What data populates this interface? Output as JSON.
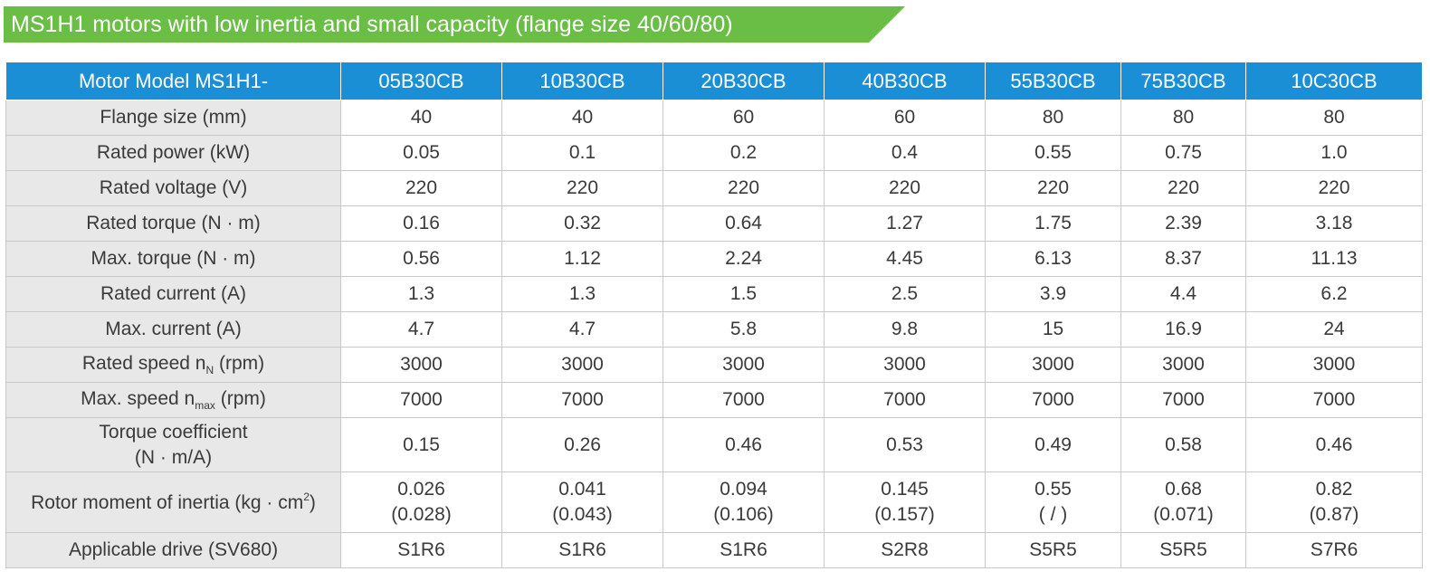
{
  "banner": {
    "title": "MS1H1 motors with low inertia and small capacity (flange size 40/60/80)",
    "color": "#6abd45"
  },
  "table": {
    "header_color": "#1a8fd6",
    "header": {
      "label": "Motor Model MS1H1-",
      "models": [
        "05B30CB",
        "10B30CB",
        "20B30CB",
        "40B30CB",
        "55B30CB",
        "75B30CB",
        "10C30CB"
      ]
    },
    "rows": [
      {
        "label": "Flange size (mm)",
        "values": [
          "40",
          "40",
          "60",
          "60",
          "80",
          "80",
          "80"
        ]
      },
      {
        "label": "Rated power (kW)",
        "values": [
          "0.05",
          "0.1",
          "0.2",
          "0.4",
          "0.55",
          "0.75",
          "1.0"
        ]
      },
      {
        "label": "Rated voltage (V)",
        "values": [
          "220",
          "220",
          "220",
          "220",
          "220",
          "220",
          "220"
        ]
      },
      {
        "label": "Rated torque (N · m)",
        "values": [
          "0.16",
          "0.32",
          "0.64",
          "1.27",
          "1.75",
          "2.39",
          "3.18"
        ]
      },
      {
        "label": "Max. torque (N · m)",
        "values": [
          "0.56",
          "1.12",
          "2.24",
          "4.45",
          "6.13",
          "8.37",
          "11.13"
        ]
      },
      {
        "label": "Rated current (A)",
        "values": [
          "1.3",
          "1.3",
          "1.5",
          "2.5",
          "3.9",
          "4.4",
          "6.2"
        ]
      },
      {
        "label": "Max. current (A)",
        "values": [
          "4.7",
          "4.7",
          "5.8",
          "9.8",
          "15",
          "16.9",
          "24"
        ]
      },
      {
        "label_pre": "Rated speed n",
        "label_sub": "N",
        "label_post": " (rpm)",
        "values": [
          "3000",
          "3000",
          "3000",
          "3000",
          "3000",
          "3000",
          "3000"
        ]
      },
      {
        "label_pre": "Max. speed n",
        "label_sub": "max",
        "label_post": " (rpm)",
        "values": [
          "7000",
          "7000",
          "7000",
          "7000",
          "7000",
          "7000",
          "7000"
        ]
      },
      {
        "label_line1": "Torque coefficient",
        "label_line2": "(N · m/A)",
        "values": [
          "0.15",
          "0.26",
          "0.46",
          "0.53",
          "0.49",
          "0.58",
          "0.46"
        ]
      },
      {
        "label_pre": "Rotor moment of inertia (kg · cm",
        "label_sup": "2",
        "label_post": ")",
        "values": [
          {
            "main": "0.026",
            "alt": "(0.028)"
          },
          {
            "main": "0.041",
            "alt": "(0.043)"
          },
          {
            "main": "0.094",
            "alt": "(0.106)"
          },
          {
            "main": "0.145",
            "alt": "(0.157)"
          },
          {
            "main": "0.55",
            "alt": "( / )"
          },
          {
            "main": "0.68",
            "alt": "(0.071)"
          },
          {
            "main": "0.82",
            "alt": "(0.87)"
          }
        ]
      },
      {
        "label": "Applicable drive (SV680)",
        "values": [
          "S1R6",
          "S1R6",
          "S1R6",
          "S2R8",
          "S5R5",
          "S5R5",
          "S7R6"
        ]
      }
    ]
  }
}
